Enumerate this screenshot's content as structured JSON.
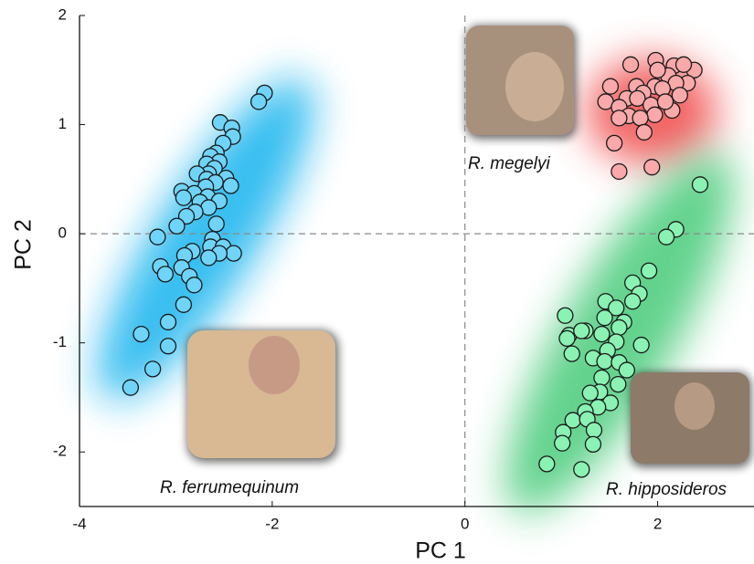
{
  "chart_data": {
    "type": "scatter",
    "x_label": "PC 1",
    "y_label": "PC 2",
    "xlim": [
      -4,
      3
    ],
    "ylim": [
      -2.5,
      2
    ],
    "xticks": [
      -4,
      -2,
      0,
      2
    ],
    "yticks": [
      -2,
      -1,
      0,
      1,
      2
    ],
    "zero_lines": true,
    "series": [
      {
        "name": "R. ferrumequinum",
        "color": "#6fd4f8",
        "x": [
          -2.08,
          -2.14,
          -2.54,
          -2.42,
          -2.41,
          -2.51,
          -2.58,
          -2.64,
          -2.55,
          -2.68,
          -2.6,
          -2.66,
          -2.78,
          -2.48,
          -2.68,
          -2.59,
          -2.43,
          -2.69,
          -2.94,
          -2.81,
          -2.92,
          -2.67,
          -2.75,
          -2.55,
          -2.66,
          -2.8,
          -2.89,
          -2.99,
          -2.58,
          -3.19,
          -2.62,
          -2.64,
          -2.51,
          -2.83,
          -2.4,
          -2.55,
          -2.91,
          -2.66,
          -3.16,
          -2.94,
          -3.11,
          -2.86,
          -2.81,
          -2.92,
          -3.08,
          -3.36,
          -3.08,
          -3.24,
          -3.47
        ],
        "values": [
          1.29,
          1.21,
          1.02,
          0.97,
          0.89,
          0.83,
          0.74,
          0.71,
          0.66,
          0.64,
          0.6,
          0.55,
          0.55,
          0.51,
          0.5,
          0.47,
          0.44,
          0.43,
          0.39,
          0.37,
          0.33,
          0.34,
          0.29,
          0.3,
          0.24,
          0.2,
          0.16,
          0.07,
          0.09,
          -0.03,
          -0.05,
          -0.12,
          -0.12,
          -0.16,
          -0.18,
          -0.18,
          -0.2,
          -0.22,
          -0.3,
          -0.31,
          -0.37,
          -0.39,
          -0.47,
          -0.65,
          -0.81,
          -0.92,
          -1.03,
          -1.24,
          -1.41
        ]
      },
      {
        "name": "R. megelyi",
        "color": "#f9a9a9",
        "x": [
          1.98,
          1.72,
          2.38,
          2.17,
          2.27,
          2.11,
          2.31,
          2.19,
          1.51,
          1.78,
          1.97,
          1.85,
          2.05,
          2.23,
          1.68,
          1.46,
          1.6,
          1.79,
          1.93,
          2.15,
          1.97,
          1.7,
          1.6,
          1.82,
          1.86,
          1.55,
          1.94,
          1.6,
          2.08,
          2.0
        ],
        "values": [
          1.59,
          1.55,
          1.5,
          1.54,
          1.55,
          1.45,
          1.38,
          1.38,
          1.35,
          1.35,
          1.35,
          1.29,
          1.33,
          1.27,
          1.24,
          1.21,
          1.16,
          1.24,
          1.18,
          1.13,
          1.09,
          1.08,
          1.06,
          1.06,
          0.93,
          0.83,
          0.61,
          0.57,
          1.21,
          1.5
        ]
      },
      {
        "name": "R. hipposideros",
        "color": "#8af2b2",
        "x": [
          2.44,
          2.19,
          2.09,
          1.91,
          1.74,
          1.81,
          1.74,
          1.46,
          1.04,
          1.57,
          1.65,
          1.45,
          1.6,
          1.25,
          1.08,
          1.21,
          1.42,
          1.57,
          1.83,
          1.06,
          1.48,
          1.33,
          1.45,
          1.11,
          1.6,
          1.68,
          1.42,
          1.59,
          1.4,
          1.3,
          1.51,
          1.38,
          1.25,
          1.12,
          1.27,
          1.34,
          1.02,
          1.01,
          1.33,
          0.85,
          1.21
        ],
        "values": [
          0.45,
          0.04,
          -0.03,
          -0.34,
          -0.45,
          -0.55,
          -0.62,
          -0.62,
          -0.75,
          -0.68,
          -0.81,
          -0.77,
          -0.86,
          -0.89,
          -0.93,
          -0.89,
          -0.92,
          -0.99,
          -1.02,
          -0.96,
          -1.07,
          -1.14,
          -1.17,
          -1.1,
          -1.18,
          -1.25,
          -1.32,
          -1.38,
          -1.45,
          -1.46,
          -1.55,
          -1.59,
          -1.63,
          -1.71,
          -1.7,
          -1.8,
          -1.82,
          -1.92,
          -1.93,
          -2.11,
          -2.16
        ]
      }
    ]
  }
}
